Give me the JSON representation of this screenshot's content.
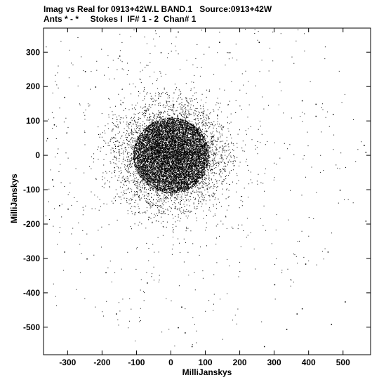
{
  "header": {
    "line1": "Imag vs Real for 0913+42W.L BAND.1   Source:0913+42W",
    "line2": "Ants * - *     Stokes I  IF# 1 - 2  Chan# 1"
  },
  "chart_data": {
    "type": "scatter",
    "title": "Imag vs Real for 0913+42W.L BAND.1   Source:0913+42W",
    "subtitle": "Ants * - *     Stokes I  IF# 1 - 2  Chan# 1",
    "xlabel": "MilliJanskys",
    "ylabel": "MilliJanskys",
    "xlim": [
      -370,
      580
    ],
    "ylim": [
      -580,
      370
    ],
    "xticks": [
      -300,
      -200,
      -100,
      0,
      100,
      200,
      300,
      400,
      500
    ],
    "yticks": [
      300,
      200,
      100,
      0,
      -100,
      -200,
      -300,
      -400,
      -500
    ],
    "grid": false,
    "legend": "none",
    "marker_color": "#000000",
    "distribution": {
      "center_x": 0,
      "center_y": 0,
      "core_radius": 110,
      "spread_sigma": 70,
      "halo_max_radius": 560
    },
    "outlier_points": [
      [
        -220,
        200
      ],
      [
        -250,
        245
      ],
      [
        -310,
        170
      ],
      [
        -340,
        90
      ],
      [
        -360,
        50
      ],
      [
        -345,
        -70
      ],
      [
        -325,
        -145
      ],
      [
        -300,
        -155
      ],
      [
        -310,
        -280
      ],
      [
        -245,
        -300
      ],
      [
        -190,
        -340
      ],
      [
        -160,
        -460
      ],
      [
        -70,
        -370
      ],
      [
        30,
        -440
      ],
      [
        20,
        -500
      ],
      [
        40,
        -515
      ],
      [
        60,
        -555
      ],
      [
        270,
        -555
      ],
      [
        335,
        -505
      ],
      [
        365,
        -460
      ],
      [
        380,
        -445
      ],
      [
        465,
        -490
      ],
      [
        505,
        -425
      ],
      [
        380,
        160
      ],
      [
        420,
        150
      ],
      [
        420,
        115
      ],
      [
        470,
        120
      ],
      [
        490,
        -100
      ],
      [
        565,
        -190
      ],
      [
        560,
        30
      ],
      [
        565,
        10
      ],
      [
        455,
        -280
      ],
      [
        255,
        330
      ],
      [
        20,
        360
      ],
      [
        -30,
        300
      ],
      [
        390,
        -315
      ],
      [
        300,
        -375
      ],
      [
        140,
        330
      ],
      [
        -150,
        290
      ],
      [
        170,
        300
      ]
    ]
  }
}
